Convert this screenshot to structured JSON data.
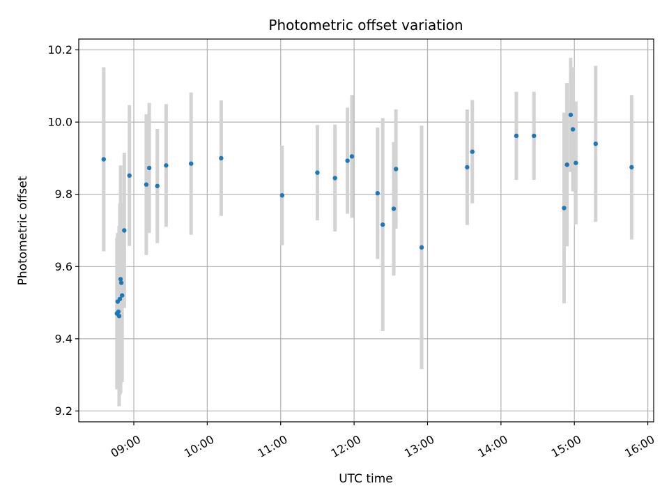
{
  "chart_data": {
    "type": "scatter",
    "title": "Photometric offset variation",
    "xlabel": "UTC time",
    "ylabel": "Photometric offset",
    "grid": true,
    "legend": "none",
    "xlim_hours": [
      8.25,
      16.08
    ],
    "ylim": [
      9.17,
      10.23
    ],
    "x_ticks": [
      {
        "hour": 9,
        "label": "09:00"
      },
      {
        "hour": 10,
        "label": "10:00"
      },
      {
        "hour": 11,
        "label": "11:00"
      },
      {
        "hour": 12,
        "label": "12:00"
      },
      {
        "hour": 13,
        "label": "13:00"
      },
      {
        "hour": 14,
        "label": "14:00"
      },
      {
        "hour": 15,
        "label": "15:00"
      },
      {
        "hour": 16,
        "label": "16:00"
      }
    ],
    "y_ticks": [
      {
        "value": 9.2,
        "label": "9.2"
      },
      {
        "value": 9.4,
        "label": "9.4"
      },
      {
        "value": 9.6,
        "label": "9.6"
      },
      {
        "value": 9.8,
        "label": "9.8"
      },
      {
        "value": 10.0,
        "label": "10.0"
      },
      {
        "value": 10.2,
        "label": "10.2"
      }
    ],
    "marker_color": "#1f77b4",
    "errorbar_color": "#d3d3d3",
    "points": [
      {
        "x": 8.59,
        "y": 9.897,
        "err": 0.255
      },
      {
        "x": 8.77,
        "y": 9.47,
        "err": 0.21
      },
      {
        "x": 8.78,
        "y": 9.503,
        "err": 0.19
      },
      {
        "x": 8.79,
        "y": 9.475,
        "err": 0.215
      },
      {
        "x": 8.8,
        "y": 9.463,
        "err": 0.25
      },
      {
        "x": 8.81,
        "y": 9.51,
        "err": 0.265
      },
      {
        "x": 8.82,
        "y": 9.565,
        "err": 0.315
      },
      {
        "x": 8.83,
        "y": 9.555,
        "err": 0.22
      },
      {
        "x": 8.84,
        "y": 9.52,
        "err": 0.24
      },
      {
        "x": 8.87,
        "y": 9.7,
        "err": 0.215
      },
      {
        "x": 8.94,
        "y": 9.852,
        "err": 0.195
      },
      {
        "x": 9.17,
        "y": 9.827,
        "err": 0.195
      },
      {
        "x": 9.21,
        "y": 9.873,
        "err": 0.18
      },
      {
        "x": 9.32,
        "y": 9.823,
        "err": 0.158
      },
      {
        "x": 9.44,
        "y": 9.88,
        "err": 0.17
      },
      {
        "x": 9.78,
        "y": 9.885,
        "err": 0.197
      },
      {
        "x": 10.19,
        "y": 9.9,
        "err": 0.16
      },
      {
        "x": 11.02,
        "y": 9.797,
        "err": 0.138
      },
      {
        "x": 11.5,
        "y": 9.86,
        "err": 0.132
      },
      {
        "x": 11.74,
        "y": 9.845,
        "err": 0.148
      },
      {
        "x": 11.91,
        "y": 9.893,
        "err": 0.147
      },
      {
        "x": 11.97,
        "y": 9.905,
        "err": 0.17
      },
      {
        "x": 12.32,
        "y": 9.803,
        "err": 0.182
      },
      {
        "x": 12.39,
        "y": 9.716,
        "err": 0.295
      },
      {
        "x": 12.54,
        "y": 9.76,
        "err": 0.185
      },
      {
        "x": 12.57,
        "y": 9.87,
        "err": 0.165
      },
      {
        "x": 12.92,
        "y": 9.653,
        "err": 0.337
      },
      {
        "x": 13.54,
        "y": 9.875,
        "err": 0.16
      },
      {
        "x": 13.61,
        "y": 9.918,
        "err": 0.143
      },
      {
        "x": 14.21,
        "y": 9.962,
        "err": 0.122
      },
      {
        "x": 14.45,
        "y": 9.962,
        "err": 0.122
      },
      {
        "x": 14.86,
        "y": 9.762,
        "err": 0.264
      },
      {
        "x": 14.9,
        "y": 9.882,
        "err": 0.226
      },
      {
        "x": 14.95,
        "y": 10.02,
        "err": 0.158
      },
      {
        "x": 14.98,
        "y": 9.98,
        "err": 0.172
      },
      {
        "x": 15.02,
        "y": 9.887,
        "err": 0.17
      },
      {
        "x": 15.29,
        "y": 9.94,
        "err": 0.216
      },
      {
        "x": 15.78,
        "y": 9.875,
        "err": 0.2
      }
    ]
  }
}
